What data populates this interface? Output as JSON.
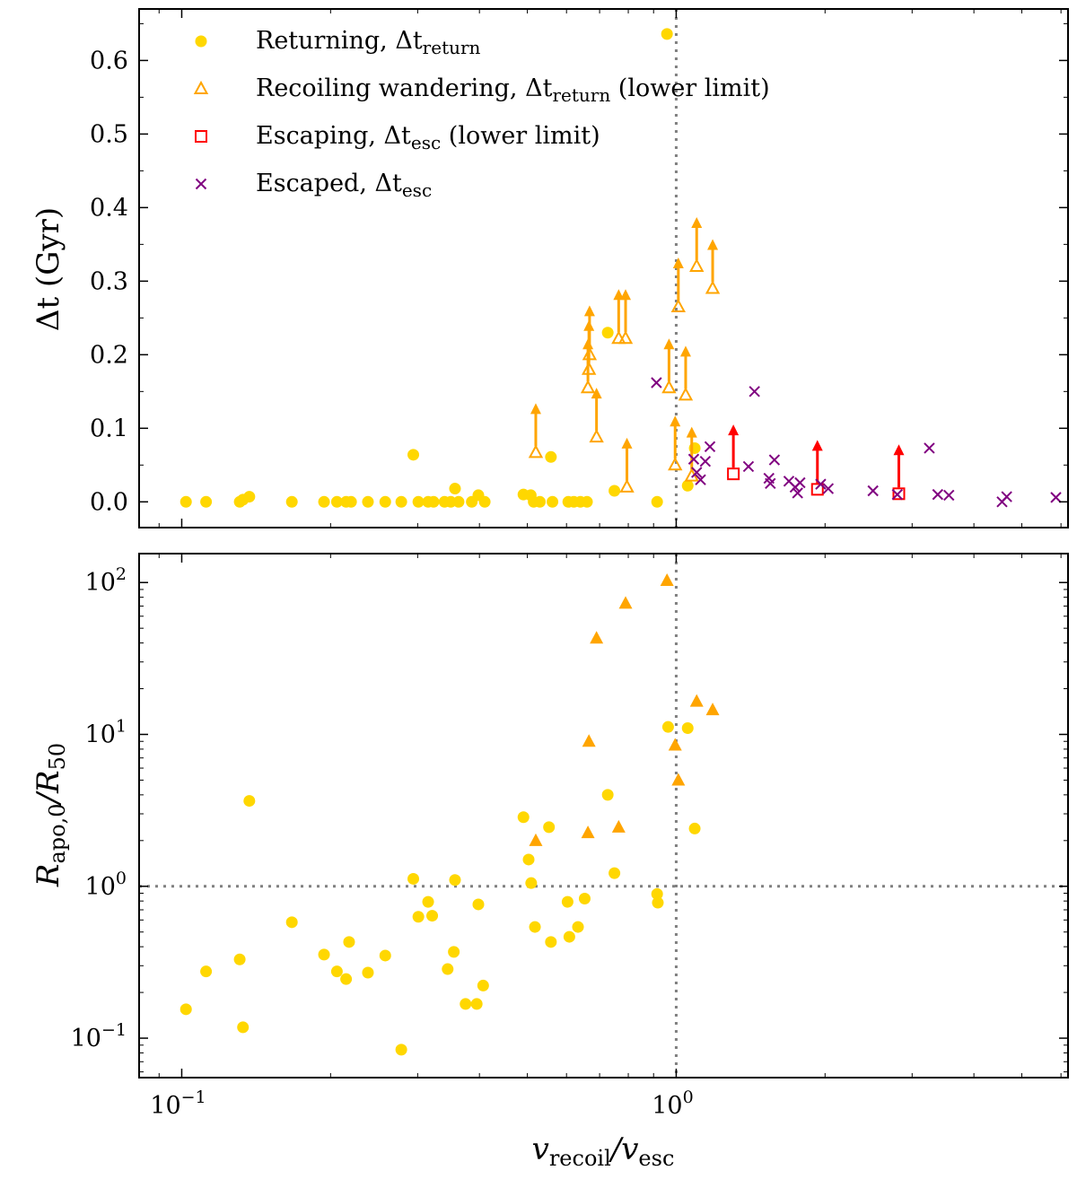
{
  "colors": {
    "returning": "#ffd700",
    "wandering": "#ffa500",
    "escaping": "#ff0000",
    "escaped": "#800080",
    "refline": "#808080",
    "axis": "#000000"
  },
  "chart_data": [
    {
      "type": "scatter",
      "panel": "top",
      "xscale": "log",
      "xlim": [
        0.082,
        6.2
      ],
      "ylim": [
        -0.035,
        0.67
      ],
      "xlabel": "",
      "ylabel": "Δt (Gyr)",
      "yticks": [
        0.0,
        0.1,
        0.2,
        0.3,
        0.4,
        0.5,
        0.6
      ],
      "yticklabels": [
        "0.0",
        "0.1",
        "0.2",
        "0.3",
        "0.4",
        "0.5",
        "0.6"
      ],
      "grid": false,
      "legend": {
        "placement": "top-left"
      },
      "reference_lines": [
        {
          "orientation": "vertical",
          "x": 1.0,
          "style": "dotted"
        }
      ],
      "series": [
        {
          "name": "Returning, Δt_return",
          "label_main": "Returning, Δt",
          "label_sub": "return",
          "label_tail": "",
          "marker": "circle-filled",
          "points": [
            {
              "x": 0.102,
              "y": 0.0
            },
            {
              "x": 0.112,
              "y": 0.0
            },
            {
              "x": 0.131,
              "y": 0.0
            },
            {
              "x": 0.133,
              "y": 0.003
            },
            {
              "x": 0.137,
              "y": 0.007
            },
            {
              "x": 0.167,
              "y": 0.0
            },
            {
              "x": 0.194,
              "y": 0.0
            },
            {
              "x": 0.206,
              "y": 0.0
            },
            {
              "x": 0.215,
              "y": 0.0
            },
            {
              "x": 0.22,
              "y": 0.0
            },
            {
              "x": 0.238,
              "y": 0.0
            },
            {
              "x": 0.258,
              "y": 0.0
            },
            {
              "x": 0.278,
              "y": 0.0
            },
            {
              "x": 0.294,
              "y": 0.064
            },
            {
              "x": 0.301,
              "y": 0.0
            },
            {
              "x": 0.315,
              "y": 0.0
            },
            {
              "x": 0.323,
              "y": 0.0
            },
            {
              "x": 0.34,
              "y": 0.0
            },
            {
              "x": 0.35,
              "y": 0.0
            },
            {
              "x": 0.357,
              "y": 0.018
            },
            {
              "x": 0.363,
              "y": 0.0
            },
            {
              "x": 0.386,
              "y": 0.0
            },
            {
              "x": 0.398,
              "y": 0.009
            },
            {
              "x": 0.41,
              "y": 0.0
            },
            {
              "x": 0.491,
              "y": 0.01
            },
            {
              "x": 0.508,
              "y": 0.009
            },
            {
              "x": 0.515,
              "y": 0.0
            },
            {
              "x": 0.53,
              "y": 0.0
            },
            {
              "x": 0.558,
              "y": 0.061
            },
            {
              "x": 0.562,
              "y": 0.0
            },
            {
              "x": 0.605,
              "y": 0.0
            },
            {
              "x": 0.621,
              "y": 0.0
            },
            {
              "x": 0.64,
              "y": 0.0
            },
            {
              "x": 0.66,
              "y": 0.0
            },
            {
              "x": 0.727,
              "y": 0.23
            },
            {
              "x": 0.75,
              "y": 0.015
            },
            {
              "x": 0.915,
              "y": 0.0
            },
            {
              "x": 0.958,
              "y": 0.636
            },
            {
              "x": 1.055,
              "y": 0.022
            },
            {
              "x": 1.09,
              "y": 0.073
            }
          ]
        },
        {
          "name": "Recoiling wandering, Δt_return (lower limit)",
          "label_main": "Recoiling wandering, Δt",
          "label_sub": "return",
          "label_tail": " (lower limit)",
          "marker": "triangle-open-with-arrow",
          "points": [
            {
              "x": 0.52,
              "y": 0.067
            },
            {
              "x": 0.663,
              "y": 0.155
            },
            {
              "x": 0.666,
              "y": 0.18
            },
            {
              "x": 0.668,
              "y": 0.2
            },
            {
              "x": 0.69,
              "y": 0.088
            },
            {
              "x": 0.765,
              "y": 0.222
            },
            {
              "x": 0.79,
              "y": 0.222
            },
            {
              "x": 0.795,
              "y": 0.02
            },
            {
              "x": 0.967,
              "y": 0.155
            },
            {
              "x": 0.995,
              "y": 0.05
            },
            {
              "x": 1.01,
              "y": 0.265
            },
            {
              "x": 1.045,
              "y": 0.145
            },
            {
              "x": 1.075,
              "y": 0.035
            },
            {
              "x": 1.1,
              "y": 0.32
            },
            {
              "x": 1.185,
              "y": 0.29
            }
          ]
        },
        {
          "name": "Escaping, Δt_esc (lower limit)",
          "label_main": "Escaping, Δt",
          "label_sub": "esc",
          "label_tail": " (lower limit)",
          "marker": "square-open-with-arrow",
          "points": [
            {
              "x": 1.305,
              "y": 0.038
            },
            {
              "x": 1.93,
              "y": 0.017
            },
            {
              "x": 2.82,
              "y": 0.011
            }
          ]
        },
        {
          "name": "Escaped, Δt_esc",
          "label_main": "Escaped, Δt",
          "label_sub": "esc",
          "label_tail": "",
          "marker": "x",
          "points": [
            {
              "x": 0.912,
              "y": 0.162
            },
            {
              "x": 1.085,
              "y": 0.058
            },
            {
              "x": 1.1,
              "y": 0.04
            },
            {
              "x": 1.12,
              "y": 0.03
            },
            {
              "x": 1.145,
              "y": 0.055
            },
            {
              "x": 1.17,
              "y": 0.075
            },
            {
              "x": 1.4,
              "y": 0.048
            },
            {
              "x": 1.44,
              "y": 0.15
            },
            {
              "x": 1.54,
              "y": 0.032
            },
            {
              "x": 1.55,
              "y": 0.025
            },
            {
              "x": 1.58,
              "y": 0.057
            },
            {
              "x": 1.69,
              "y": 0.028
            },
            {
              "x": 1.74,
              "y": 0.02
            },
            {
              "x": 1.76,
              "y": 0.012
            },
            {
              "x": 1.78,
              "y": 0.026
            },
            {
              "x": 1.96,
              "y": 0.024
            },
            {
              "x": 2.03,
              "y": 0.018
            },
            {
              "x": 2.5,
              "y": 0.015
            },
            {
              "x": 2.8,
              "y": 0.01
            },
            {
              "x": 3.25,
              "y": 0.073
            },
            {
              "x": 3.38,
              "y": 0.01
            },
            {
              "x": 3.56,
              "y": 0.009
            },
            {
              "x": 4.56,
              "y": 0.0
            },
            {
              "x": 4.66,
              "y": 0.007
            },
            {
              "x": 5.86,
              "y": 0.006
            }
          ]
        }
      ]
    },
    {
      "type": "scatter",
      "panel": "bottom",
      "xscale": "log",
      "yscale": "log",
      "xlim": [
        0.082,
        6.2
      ],
      "ylim": [
        0.055,
        155
      ],
      "xlabel_main": "v",
      "xlabel_sub1": "recoil",
      "xlabel_mid": "/v",
      "xlabel_sub2": "esc",
      "ylabel_main": "R",
      "ylabel_sub1": "apo,0",
      "ylabel_mid": "/R",
      "ylabel_sub2": "50",
      "xticks": [
        0.1,
        1.0
      ],
      "xtick_base": "10",
      "xtick_exps": [
        "−1",
        "0"
      ],
      "yticks": [
        0.1,
        1,
        10,
        100
      ],
      "ytick_base": "10",
      "ytick_exps": [
        "−1",
        "0",
        "1",
        "2"
      ],
      "grid": false,
      "reference_lines": [
        {
          "orientation": "vertical",
          "x": 1.0,
          "style": "dotted"
        },
        {
          "orientation": "horizontal",
          "y": 1.0,
          "style": "dotted"
        }
      ],
      "series": [
        {
          "marker": "circle-filled",
          "color_key": "returning",
          "points": [
            {
              "x": 0.102,
              "y": 0.155
            },
            {
              "x": 0.112,
              "y": 0.275
            },
            {
              "x": 0.131,
              "y": 0.33
            },
            {
              "x": 0.133,
              "y": 0.118
            },
            {
              "x": 0.137,
              "y": 3.65
            },
            {
              "x": 0.167,
              "y": 0.58
            },
            {
              "x": 0.194,
              "y": 0.355
            },
            {
              "x": 0.206,
              "y": 0.275
            },
            {
              "x": 0.215,
              "y": 0.245
            },
            {
              "x": 0.218,
              "y": 0.43
            },
            {
              "x": 0.238,
              "y": 0.27
            },
            {
              "x": 0.258,
              "y": 0.35
            },
            {
              "x": 0.278,
              "y": 0.084
            },
            {
              "x": 0.294,
              "y": 1.12
            },
            {
              "x": 0.301,
              "y": 0.63
            },
            {
              "x": 0.315,
              "y": 0.79
            },
            {
              "x": 0.321,
              "y": 0.64
            },
            {
              "x": 0.345,
              "y": 0.285
            },
            {
              "x": 0.355,
              "y": 0.37
            },
            {
              "x": 0.357,
              "y": 1.1
            },
            {
              "x": 0.375,
              "y": 0.168
            },
            {
              "x": 0.395,
              "y": 0.168
            },
            {
              "x": 0.398,
              "y": 0.76
            },
            {
              "x": 0.407,
              "y": 0.222
            },
            {
              "x": 0.491,
              "y": 2.85
            },
            {
              "x": 0.503,
              "y": 1.5
            },
            {
              "x": 0.509,
              "y": 1.05
            },
            {
              "x": 0.518,
              "y": 0.54
            },
            {
              "x": 0.553,
              "y": 2.45
            },
            {
              "x": 0.558,
              "y": 0.43
            },
            {
              "x": 0.603,
              "y": 0.79
            },
            {
              "x": 0.608,
              "y": 0.465
            },
            {
              "x": 0.633,
              "y": 0.54
            },
            {
              "x": 0.653,
              "y": 0.83
            },
            {
              "x": 0.727,
              "y": 4.0
            },
            {
              "x": 0.75,
              "y": 1.22
            },
            {
              "x": 0.915,
              "y": 0.89
            },
            {
              "x": 0.918,
              "y": 0.78
            },
            {
              "x": 0.963,
              "y": 11.2
            },
            {
              "x": 1.055,
              "y": 11.0
            },
            {
              "x": 1.09,
              "y": 2.4
            }
          ]
        },
        {
          "marker": "triangle-filled",
          "color_key": "wandering",
          "points": [
            {
              "x": 0.52,
              "y": 2.0
            },
            {
              "x": 0.663,
              "y": 2.25
            },
            {
              "x": 0.666,
              "y": 9.0
            },
            {
              "x": 0.69,
              "y": 43.0
            },
            {
              "x": 0.765,
              "y": 2.45
            },
            {
              "x": 0.79,
              "y": 73.0
            },
            {
              "x": 0.958,
              "y": 103.0
            },
            {
              "x": 0.995,
              "y": 8.5
            },
            {
              "x": 1.01,
              "y": 5.0
            },
            {
              "x": 1.1,
              "y": 16.5
            },
            {
              "x": 1.185,
              "y": 14.5
            }
          ]
        }
      ]
    }
  ]
}
